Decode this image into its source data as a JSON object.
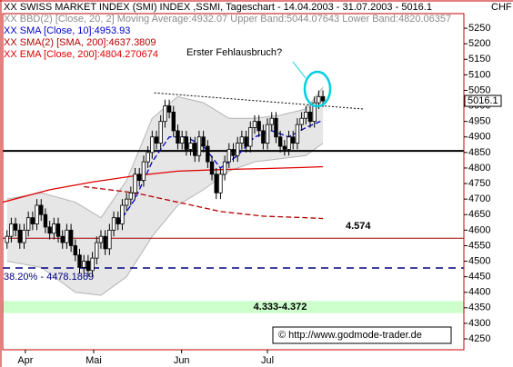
{
  "chart_data": {
    "type": "candlestick",
    "title": "XX SWISS MARKET INDEX (SMI) INDEX ,SSMI, Tageschart - 14.04.2003 - 31.07.2003 - 5016.1",
    "currency": "CHF",
    "annotation": "Erster Fehlausbruch?",
    "copyright": "© http://www.godmode-trader.de",
    "last_price": 5016.1,
    "ylim": [
      4215,
      5297
    ],
    "yticks": [
      4250,
      4300,
      4350,
      4400,
      4450,
      4500,
      4550,
      4600,
      4650,
      4700,
      4750,
      4800,
      4850,
      4900,
      4950,
      5000,
      5050,
      5100,
      5150,
      5200,
      5250
    ],
    "xlim": [
      -1,
      107
    ],
    "xticks": [
      {
        "value": 4.3,
        "label": "Apr"
      },
      {
        "value": 20.3,
        "label": "Mai"
      },
      {
        "value": 40.9,
        "label": "Jun"
      },
      {
        "value": 61,
        "label": "Jul"
      }
    ],
    "up_color": "#ffffff",
    "down_color": "#000000",
    "candles": [
      [
        4560,
        4600,
        4540,
        4580
      ],
      [
        4580,
        4640,
        4560,
        4620
      ],
      [
        4620,
        4640,
        4580,
        4600
      ],
      [
        4600,
        4620,
        4540,
        4560
      ],
      [
        4560,
        4620,
        4540,
        4600
      ],
      [
        4600,
        4660,
        4580,
        4640
      ],
      [
        4640,
        4660,
        4600,
        4620
      ],
      [
        4620,
        4700,
        4600,
        4680
      ],
      [
        4680,
        4700,
        4630,
        4650
      ],
      [
        4650,
        4670,
        4590,
        4610
      ],
      [
        4610,
        4630,
        4570,
        4590
      ],
      [
        4590,
        4640,
        4570,
        4620
      ],
      [
        4620,
        4640,
        4560,
        4580
      ],
      [
        4580,
        4600,
        4540,
        4560
      ],
      [
        4560,
        4620,
        4540,
        4600
      ],
      [
        4600,
        4620,
        4530,
        4550
      ],
      [
        4550,
        4570,
        4500,
        4520
      ],
      [
        4520,
        4540,
        4460,
        4480
      ],
      [
        4480,
        4520,
        4460,
        4500
      ],
      [
        4500,
        4520,
        4450,
        4470
      ],
      [
        4470,
        4530,
        4450,
        4510
      ],
      [
        4510,
        4580,
        4490,
        4560
      ],
      [
        4560,
        4600,
        4540,
        4580
      ],
      [
        4580,
        4600,
        4520,
        4540
      ],
      [
        4540,
        4620,
        4520,
        4600
      ],
      [
        4600,
        4660,
        4580,
        4640
      ],
      [
        4640,
        4660,
        4600,
        4620
      ],
      [
        4620,
        4700,
        4600,
        4680
      ],
      [
        4680,
        4720,
        4660,
        4700
      ],
      [
        4700,
        4740,
        4680,
        4720
      ],
      [
        4720,
        4800,
        4700,
        4780
      ],
      [
        4780,
        4800,
        4740,
        4760
      ],
      [
        4760,
        4840,
        4740,
        4820
      ],
      [
        4820,
        4870,
        4800,
        4850
      ],
      [
        4850,
        4920,
        4830,
        4900
      ],
      [
        4900,
        4920,
        4860,
        4880
      ],
      [
        4880,
        4970,
        4860,
        4950
      ],
      [
        4950,
        5020,
        4930,
        5000
      ],
      [
        5000,
        5020,
        4960,
        4980
      ],
      [
        4980,
        5000,
        4900,
        4920
      ],
      [
        4920,
        4940,
        4860,
        4880
      ],
      [
        4880,
        4920,
        4860,
        4900
      ],
      [
        4900,
        4920,
        4840,
        4860
      ],
      [
        4860,
        4900,
        4840,
        4880
      ],
      [
        4880,
        4900,
        4820,
        4840
      ],
      [
        4840,
        4920,
        4820,
        4900
      ],
      [
        4900,
        4920,
        4850,
        4870
      ],
      [
        4870,
        4890,
        4800,
        4820
      ],
      [
        4820,
        4840,
        4760,
        4780
      ],
      [
        4780,
        4800,
        4700,
        4720
      ],
      [
        4720,
        4800,
        4700,
        4780
      ],
      [
        4780,
        4840,
        4760,
        4820
      ],
      [
        4820,
        4880,
        4800,
        4860
      ],
      [
        4860,
        4880,
        4820,
        4840
      ],
      [
        4840,
        4900,
        4820,
        4880
      ],
      [
        4880,
        4920,
        4860,
        4900
      ],
      [
        4900,
        4920,
        4850,
        4870
      ],
      [
        4870,
        4950,
        4850,
        4930
      ],
      [
        4930,
        4970,
        4910,
        4950
      ],
      [
        4950,
        4970,
        4900,
        4920
      ],
      [
        4920,
        4940,
        4860,
        4880
      ],
      [
        4880,
        4960,
        4860,
        4940
      ],
      [
        4940,
        4980,
        4920,
        4960
      ],
      [
        4960,
        4980,
        4880,
        4900
      ],
      [
        4900,
        4920,
        4850,
        4870
      ],
      [
        4870,
        4890,
        4840,
        4860
      ],
      [
        4860,
        4920,
        4840,
        4900
      ],
      [
        4900,
        4920,
        4860,
        4880
      ],
      [
        4880,
        4960,
        4860,
        4940
      ],
      [
        4940,
        4980,
        4920,
        4960
      ],
      [
        4960,
        5000,
        4940,
        4980
      ],
      [
        4980,
        5000,
        4930,
        4950
      ],
      [
        4950,
        5030,
        4930,
        5010
      ],
      [
        5010,
        5050,
        4990,
        5030
      ],
      [
        5030,
        5050,
        4996,
        5016.1
      ]
    ],
    "band": {
      "name": "XX BBD(2) [Close, 20, 2] Moving Average:4932.07 Upper Band:5044.07643 Lower Band:4820.06357",
      "color": "#8c8c8c",
      "x": [
        0,
        8,
        16,
        22,
        28,
        34,
        40,
        46,
        52,
        58,
        64,
        70,
        74
      ],
      "upper": [
        4700,
        4720,
        4690,
        4640,
        4760,
        4960,
        5030,
        5010,
        4960,
        4960,
        4970,
        4990,
        5060
      ],
      "lower": [
        4500,
        4480,
        4400,
        4390,
        4450,
        4580,
        4680,
        4730,
        4790,
        4820,
        4830,
        4840,
        4880
      ]
    },
    "series": [
      {
        "name": "XX SMA [Close, 10]:4953.93",
        "color": "#0000c8",
        "dash": true,
        "x": [
          26,
          30,
          34,
          38,
          42,
          46,
          50,
          54,
          58,
          62,
          66,
          70,
          74
        ],
        "values": [
          4620,
          4700,
          4820,
          4900,
          4900,
          4870,
          4800,
          4840,
          4900,
          4920,
          4900,
          4930,
          4953.93
        ]
      },
      {
        "name": "XX SMA(2) [SMA, 200]:4637.3809",
        "color": "#b40000",
        "dash": true,
        "x": [
          18,
          30,
          40,
          50,
          60,
          70,
          74
        ],
        "values": [
          4740,
          4720,
          4690,
          4660,
          4645,
          4640,
          4637.3809
        ]
      },
      {
        "name": "XX EMA [Close, 200]:4804.270674",
        "color": "#e00000",
        "dash": false,
        "x": [
          -1,
          10,
          20,
          30,
          40,
          50,
          60,
          70,
          74
        ],
        "values": [
          4690,
          4730,
          4755,
          4775,
          4790,
          4795,
          4798,
          4802,
          4804.270674
        ]
      }
    ],
    "trendline": {
      "x": [
        34.5,
        83.4
      ],
      "values": [
        5042,
        4990
      ]
    },
    "levels": [
      {
        "value": 4855,
        "color": "#000000",
        "width": 2
      },
      {
        "value": 4574,
        "label": "4.574",
        "color": "#a00000",
        "width": 1
      },
      {
        "value": 4478.1869,
        "label": "38.20% - 4478.1869",
        "color": "#000080",
        "width": 1.5,
        "dash": true
      }
    ],
    "zone": {
      "range": [
        4333,
        4372
      ],
      "label": "4.333-4.372",
      "color": "#ccffcc"
    }
  }
}
